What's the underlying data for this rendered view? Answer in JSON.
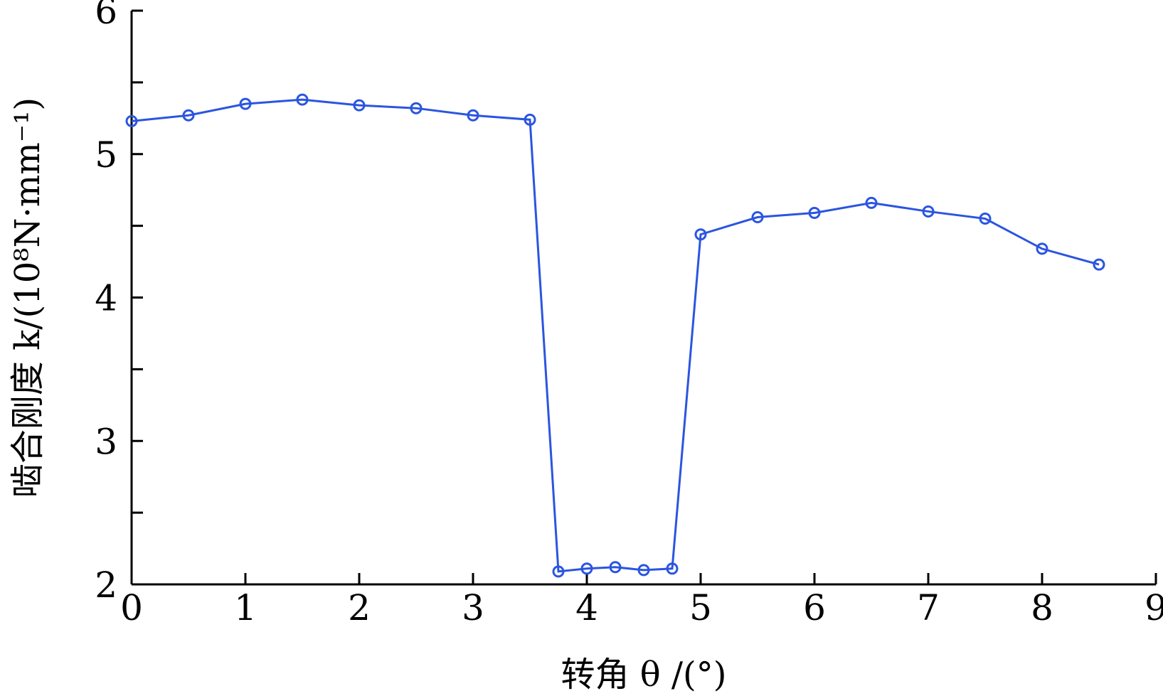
{
  "chart_data": {
    "type": "line",
    "xlabel": "转角 θ /(°)",
    "ylabel": "啮合刚度 k/(10⁸N·mm⁻¹)",
    "xlim": [
      0,
      9
    ],
    "ylim": [
      2,
      6
    ],
    "xticks": [
      0,
      1,
      2,
      3,
      4,
      5,
      6,
      7,
      8,
      9
    ],
    "yticks": [
      2,
      3,
      4,
      5,
      6
    ],
    "grid": false,
    "series": [
      {
        "color": "#2b55e0",
        "marker": "circle",
        "x": [
          0,
          0.5,
          1,
          1.5,
          2,
          2.5,
          3,
          3.5,
          3.75,
          4,
          4.25,
          4.5,
          4.75,
          5,
          5.5,
          6,
          6.5,
          7,
          7.5,
          8,
          8.5
        ],
        "y": [
          5.23,
          5.27,
          5.35,
          5.38,
          5.34,
          5.32,
          5.27,
          5.24,
          2.09,
          2.11,
          2.12,
          2.1,
          2.11,
          4.44,
          4.56,
          4.59,
          4.66,
          4.6,
          4.55,
          4.34,
          4.23
        ]
      }
    ]
  }
}
